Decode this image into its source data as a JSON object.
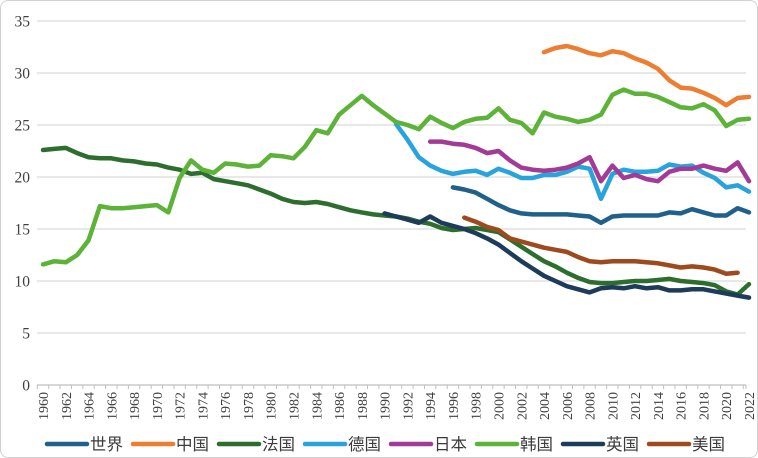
{
  "chart_data": {
    "type": "line",
    "title": "",
    "xlabel": "",
    "ylabel": "",
    "x_range": [
      1960,
      2022
    ],
    "ylim": [
      0,
      35
    ],
    "ytick_step": 5,
    "grid": "horizontal",
    "legend_position": "bottom",
    "y_tick_labels": [
      "0",
      "5",
      "10",
      "15",
      "20",
      "25",
      "30",
      "35"
    ],
    "x_tick_labels": [
      "1960",
      "1962",
      "1964",
      "1966",
      "1968",
      "1970",
      "1972",
      "1974",
      "1976",
      "1978",
      "1980",
      "1982",
      "1984",
      "1986",
      "1988",
      "1990",
      "1992",
      "1994",
      "1996",
      "1998",
      "2000",
      "2002",
      "2004",
      "2006",
      "2008",
      "2010",
      "2012",
      "2014",
      "2016",
      "2018",
      "2020",
      "2022"
    ],
    "series": [
      {
        "key": "world",
        "name": "世界",
        "color": "#20618C",
        "start_year": 1996,
        "values": [
          19.0,
          18.8,
          18.5,
          17.9,
          17.3,
          16.8,
          16.5,
          16.4,
          16.4,
          16.4,
          16.4,
          16.3,
          16.2,
          15.6,
          16.2,
          16.3,
          16.3,
          16.3,
          16.3,
          16.6,
          16.5,
          16.9,
          16.6,
          16.3,
          16.3,
          17.0,
          16.6
        ]
      },
      {
        "key": "china",
        "name": "中国",
        "color": "#ED7D31",
        "start_year": 2004,
        "values": [
          32.0,
          32.4,
          32.6,
          32.3,
          31.9,
          31.7,
          32.1,
          31.9,
          31.4,
          31.0,
          30.4,
          29.3,
          28.6,
          28.5,
          28.1,
          27.6,
          26.9,
          27.6,
          27.7
        ]
      },
      {
        "key": "france",
        "name": "法国",
        "color": "#2D6E2E",
        "start_year": 1960,
        "values": [
          22.6,
          22.7,
          22.8,
          22.3,
          21.9,
          21.8,
          21.8,
          21.6,
          21.5,
          21.3,
          21.2,
          20.9,
          20.7,
          20.3,
          20.4,
          19.8,
          19.6,
          19.4,
          19.2,
          18.8,
          18.4,
          17.9,
          17.6,
          17.5,
          17.6,
          17.4,
          17.1,
          16.8,
          16.6,
          16.4,
          16.3,
          16.2,
          16.0,
          15.7,
          15.5,
          15.1,
          14.9,
          15.0,
          15.1,
          14.9,
          14.7,
          14.0,
          13.3,
          12.6,
          11.9,
          11.4,
          10.8,
          10.3,
          9.9,
          9.8,
          9.8,
          9.9,
          10.0,
          10.0,
          10.1,
          10.2,
          10.0,
          9.9,
          9.8,
          9.6,
          9.0,
          8.7,
          9.7
        ]
      },
      {
        "key": "germany",
        "name": "德国",
        "color": "#29A3DC",
        "start_year": 1991,
        "values": [
          25.1,
          23.6,
          21.9,
          21.1,
          20.6,
          20.3,
          20.5,
          20.6,
          20.2,
          20.8,
          20.4,
          19.9,
          19.9,
          20.2,
          20.2,
          20.5,
          21.0,
          20.8,
          17.9,
          20.3,
          20.7,
          20.5,
          20.5,
          20.6,
          21.2,
          21.0,
          21.1,
          20.4,
          19.9,
          19.0,
          19.2,
          18.6
        ]
      },
      {
        "key": "japan",
        "name": "日本",
        "color": "#A23A96",
        "start_year": 1994,
        "values": [
          23.4,
          23.4,
          23.2,
          23.1,
          22.8,
          22.3,
          22.5,
          21.6,
          20.9,
          20.7,
          20.6,
          20.7,
          20.9,
          21.3,
          21.9,
          19.6,
          21.1,
          19.9,
          20.2,
          19.8,
          19.6,
          20.5,
          20.8,
          20.8,
          21.1,
          20.8,
          20.6,
          21.4,
          19.6
        ]
      },
      {
        "key": "korea",
        "name": "韩国",
        "color": "#5CB338",
        "start_year": 1960,
        "values": [
          11.6,
          11.9,
          11.8,
          12.5,
          13.9,
          17.2,
          17.0,
          17.0,
          17.1,
          17.2,
          17.3,
          16.6,
          19.9,
          21.6,
          20.7,
          20.4,
          21.3,
          21.2,
          21.0,
          21.1,
          22.1,
          22.0,
          21.8,
          22.9,
          24.5,
          24.2,
          26.0,
          26.9,
          27.8,
          26.9,
          26.1,
          25.3,
          25.0,
          24.6,
          25.8,
          25.2,
          24.7,
          25.3,
          25.6,
          25.7,
          26.6,
          25.5,
          25.2,
          24.2,
          26.2,
          25.8,
          25.6,
          25.3,
          25.5,
          26.0,
          27.9,
          28.4,
          28.0,
          28.0,
          27.7,
          27.2,
          26.7,
          26.6,
          27.0,
          26.4,
          24.9,
          25.5,
          25.6
        ]
      },
      {
        "key": "uk",
        "name": "英国",
        "color": "#1C3C59",
        "start_year": 1990,
        "values": [
          16.5,
          16.2,
          15.9,
          15.6,
          16.2,
          15.6,
          15.3,
          15.0,
          14.6,
          14.1,
          13.5,
          12.7,
          11.9,
          11.2,
          10.5,
          10.0,
          9.5,
          9.2,
          8.9,
          9.3,
          9.4,
          9.3,
          9.5,
          9.3,
          9.4,
          9.1,
          9.1,
          9.2,
          9.2,
          9.0,
          8.8,
          8.6,
          8.4
        ]
      },
      {
        "key": "usa",
        "name": "美国",
        "color": "#9D4A1E",
        "start_year": 1997,
        "values": [
          16.1,
          15.7,
          15.2,
          14.9,
          14.1,
          13.8,
          13.5,
          13.2,
          13.0,
          12.8,
          12.3,
          11.9,
          11.8,
          11.9,
          11.9,
          11.9,
          11.8,
          11.7,
          11.5,
          11.3,
          11.4,
          11.3,
          11.1,
          10.7,
          10.8
        ]
      }
    ],
    "style": {
      "background": "#FFFFFF",
      "border_color": "#D2D2D2",
      "gridline_color": "#D9D9D9",
      "axis_color": "#BFBFBF",
      "tick_label_color": "#404040",
      "legend_text_color": "#3B3B3B",
      "line_width": 4.5
    }
  }
}
